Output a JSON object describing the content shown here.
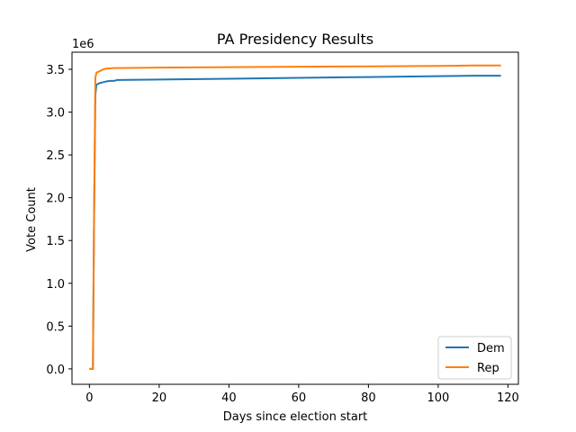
{
  "chart_data": {
    "type": "line",
    "title": "PA Presidency Results",
    "xlabel": "Days since election start",
    "ylabel": "Vote Count",
    "y_multiplier_label": "1e6",
    "xlim": [
      -5,
      123
    ],
    "ylim": [
      -0.18,
      3.7
    ],
    "xticks": [
      0,
      20,
      40,
      60,
      80,
      100,
      120
    ],
    "xtick_labels": [
      "0",
      "20",
      "40",
      "60",
      "80",
      "100",
      "120"
    ],
    "yticks": [
      0.0,
      0.5,
      1.0,
      1.5,
      2.0,
      2.5,
      3.0,
      3.5
    ],
    "ytick_labels": [
      "0.0",
      "0.5",
      "1.0",
      "1.5",
      "2.0",
      "2.5",
      "3.0",
      "3.5"
    ],
    "grid": false,
    "legend_position": "lower-right",
    "series": [
      {
        "name": "Dem",
        "color": "#1f77b4",
        "x": [
          0,
          1,
          1.3,
          1.7,
          2,
          3,
          4,
          5,
          6,
          7,
          8,
          20,
          40,
          60,
          80,
          100,
          110,
          118
        ],
        "values": [
          0,
          0,
          1.6,
          3.2,
          3.32,
          3.34,
          3.35,
          3.36,
          3.365,
          3.365,
          3.375,
          3.38,
          3.39,
          3.4,
          3.41,
          3.42,
          3.425,
          3.425
        ]
      },
      {
        "name": "Rep",
        "color": "#ff7f0e",
        "x": [
          0,
          1,
          1.3,
          1.7,
          2,
          3,
          4,
          5,
          6,
          7,
          8,
          20,
          40,
          60,
          80,
          100,
          110,
          118
        ],
        "values": [
          0,
          0,
          1.7,
          3.4,
          3.46,
          3.48,
          3.5,
          3.51,
          3.51,
          3.515,
          3.515,
          3.52,
          3.525,
          3.53,
          3.535,
          3.54,
          3.545,
          3.545
        ]
      }
    ]
  }
}
